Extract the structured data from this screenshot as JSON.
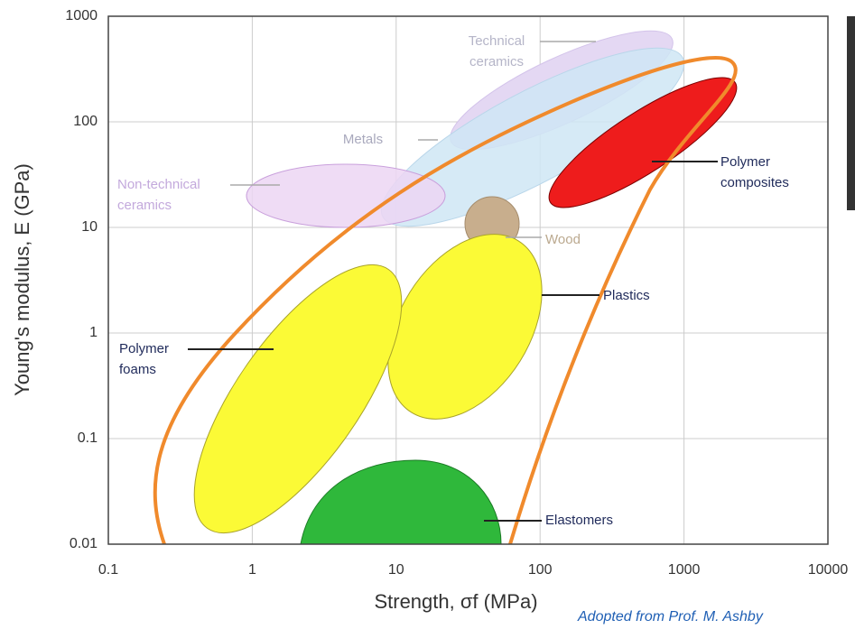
{
  "chart_data": {
    "type": "ashby",
    "xlabel": "Strength, σf (MPa)",
    "ylabel": "Young's modulus, E (GPa)",
    "credit": "Adopted from Prof. M. Ashby",
    "xscale": "log",
    "yscale": "log",
    "grid": true,
    "xlim": [
      0.1,
      10000
    ],
    "xticks": [
      0.1,
      1,
      10,
      100,
      1000,
      10000
    ],
    "ylim": [
      0.01,
      1000
    ],
    "yticks": [
      0.01,
      0.1,
      1,
      10,
      100,
      1000
    ],
    "regions": [
      {
        "label": [
          "Technical",
          "ceramics"
        ]
      },
      {
        "label": [
          "Metals"
        ]
      },
      {
        "label": [
          "Non-technical",
          "ceramics"
        ]
      },
      {
        "label": [
          "Wood"
        ]
      },
      {
        "label": [
          "Polymer",
          "composites"
        ]
      },
      {
        "label": [
          "Plastics"
        ]
      },
      {
        "label": [
          "Polymer",
          "foams"
        ]
      },
      {
        "label": [
          "Elastomers"
        ]
      }
    ]
  }
}
